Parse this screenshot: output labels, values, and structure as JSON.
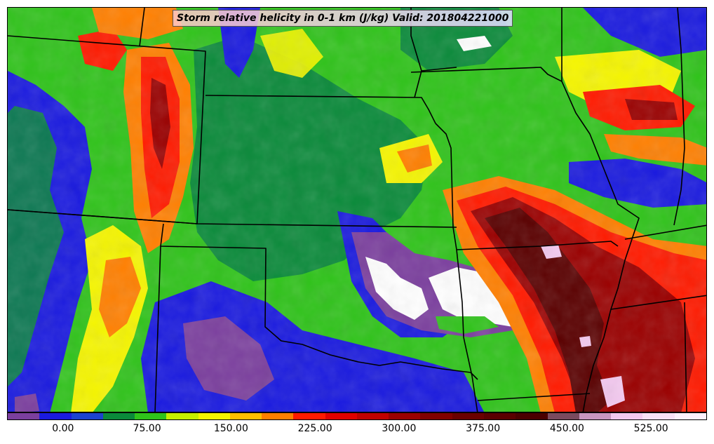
{
  "map": {
    "title": "Storm relative helicity in 0-1 km (J/kg) Valid: 201804221000",
    "variable": "Storm relative helicity 0-1 km",
    "units": "J/kg",
    "valid_time": "201804221000",
    "region": "Central United States",
    "colors": {
      "purple": "#7b3f9e",
      "blue": "#1a1adf",
      "green": "#0a8a3a",
      "lightgreen": "#2fc31a",
      "yellow": "#f5f500",
      "orange": "#ff7f00",
      "red": "#ff1a00",
      "darkred": "#9a0000",
      "maroon": "#5a0000",
      "pink": "#f3c8ef",
      "white": "#ffffff"
    }
  },
  "colorbar": {
    "colors": [
      "#7b3f9e",
      "#1a1adf",
      "#1c43d0",
      "#0a8a3a",
      "#2fc31a",
      "#c6ef00",
      "#f5f500",
      "#ffbf00",
      "#ff7f00",
      "#ff1a00",
      "#e00000",
      "#c00000",
      "#9a0000",
      "#800000",
      "#6a0000",
      "#5a0000",
      "#4a0000",
      "#7a4a5e",
      "#c896c0",
      "#f3c8ef",
      "#f8e0f6",
      "#fdf0fc"
    ],
    "ticks": [
      {
        "label": "0.00",
        "pos": 0.08
      },
      {
        "label": "75.00",
        "pos": 0.2
      },
      {
        "label": "150.00",
        "pos": 0.32
      },
      {
        "label": "225.00",
        "pos": 0.44
      },
      {
        "label": "300.00",
        "pos": 0.56
      },
      {
        "label": "375.00",
        "pos": 0.68
      },
      {
        "label": "450.00",
        "pos": 0.8
      },
      {
        "label": "525.00",
        "pos": 0.92
      }
    ]
  }
}
